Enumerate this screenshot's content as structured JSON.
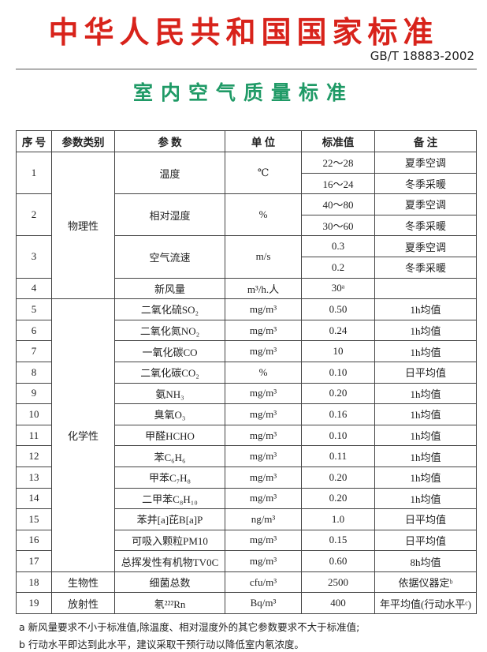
{
  "header": {
    "title": "中华人民共和国国家标准",
    "code": "GB/T 18883-2002",
    "subtitle": "室内空气质量标准"
  },
  "table": {
    "columns": [
      "序 号",
      "参数类别",
      "参 数",
      "单 位",
      "标准值",
      "备 注"
    ],
    "groups": [
      {
        "category": "物理性",
        "items": [
          {
            "no": "1",
            "param": "温度",
            "unit": "℃",
            "values": [
              "22～28",
              "16～24"
            ],
            "notes": [
              "夏季空调",
              "冬季采暖"
            ]
          },
          {
            "no": "2",
            "param": "相对湿度",
            "unit": "%",
            "values": [
              "40～80",
              "30～60"
            ],
            "notes": [
              "夏季空调",
              "冬季采暖"
            ]
          },
          {
            "no": "3",
            "param": "空气流速",
            "unit": "m/s",
            "values": [
              "0.3",
              "0.2"
            ],
            "notes": [
              "夏季空调",
              "冬季采暖"
            ]
          },
          {
            "no": "4",
            "param": "新风量",
            "unit": "m³/h.人",
            "values": [
              "30ᵃ"
            ],
            "notes": []
          }
        ]
      },
      {
        "category": "化学性",
        "items": [
          {
            "no": "5",
            "param": "二氧化硫SO₂",
            "unit": "mg/m³",
            "values": [
              "0.50"
            ],
            "notes": [
              "1h均值"
            ]
          },
          {
            "no": "6",
            "param": "二氧化氮NO₂",
            "unit": "mg/m³",
            "values": [
              "0.24"
            ],
            "notes": [
              "1h均值"
            ]
          },
          {
            "no": "7",
            "param": "一氧化碳CO",
            "unit": "mg/m³",
            "values": [
              "10"
            ],
            "notes": [
              "1h均值"
            ]
          },
          {
            "no": "8",
            "param": "二氧化碳CO₂",
            "unit": "%",
            "values": [
              "0.10"
            ],
            "notes": [
              "日平均值"
            ]
          },
          {
            "no": "9",
            "param": "氨NH₃",
            "unit": "mg/m³",
            "values": [
              "0.20"
            ],
            "notes": [
              "1h均值"
            ]
          },
          {
            "no": "10",
            "param": "臭氧O₃",
            "unit": "mg/m³",
            "values": [
              "0.16"
            ],
            "notes": [
              "1h均值"
            ]
          },
          {
            "no": "11",
            "param": "甲醛HCHO",
            "unit": "mg/m³",
            "values": [
              "0.10"
            ],
            "notes": [
              "1h均值"
            ]
          },
          {
            "no": "12",
            "param": "苯C₆H₆",
            "unit": "mg/m³",
            "values": [
              "0.11"
            ],
            "notes": [
              "1h均值"
            ]
          },
          {
            "no": "13",
            "param": "甲苯C₇H₈",
            "unit": "mg/m³",
            "values": [
              "0.20"
            ],
            "notes": [
              "1h均值"
            ]
          },
          {
            "no": "14",
            "param": "二甲苯C₈H₁₀",
            "unit": "mg/m³",
            "values": [
              "0.20"
            ],
            "notes": [
              "1h均值"
            ]
          },
          {
            "no": "15",
            "param": "苯并[a]芘B[a]P",
            "unit": "ng/m³",
            "values": [
              "1.0"
            ],
            "notes": [
              "日平均值"
            ]
          },
          {
            "no": "16",
            "param": "可吸入颗粒PM10",
            "unit": "mg/m³",
            "values": [
              "0.15"
            ],
            "notes": [
              "日平均值"
            ]
          },
          {
            "no": "17",
            "param": "总挥发性有机物TV0C",
            "unit": "mg/m³",
            "values": [
              "0.60"
            ],
            "notes": [
              "8h均值"
            ]
          }
        ]
      },
      {
        "category": "生物性",
        "items": [
          {
            "no": "18",
            "param": "细菌总数",
            "unit": "cfu/m³",
            "values": [
              "2500"
            ],
            "notes": [
              "依据仪器定ᵇ"
            ]
          }
        ]
      },
      {
        "category": "放射性",
        "items": [
          {
            "no": "19",
            "param": "氡²²²Rn",
            "unit": "Bq/m³",
            "values": [
              "400"
            ],
            "notes": [
              "年平均值(行动水平ᶜ)"
            ]
          }
        ]
      }
    ]
  },
  "footnotes": [
    "a  新风量要求不小于标准值,除温度、相对湿度外的其它参数要求不大于标准值;",
    "b  行动水平即达到此水平，建议采取干预行动以降低室内氡浓度。"
  ]
}
